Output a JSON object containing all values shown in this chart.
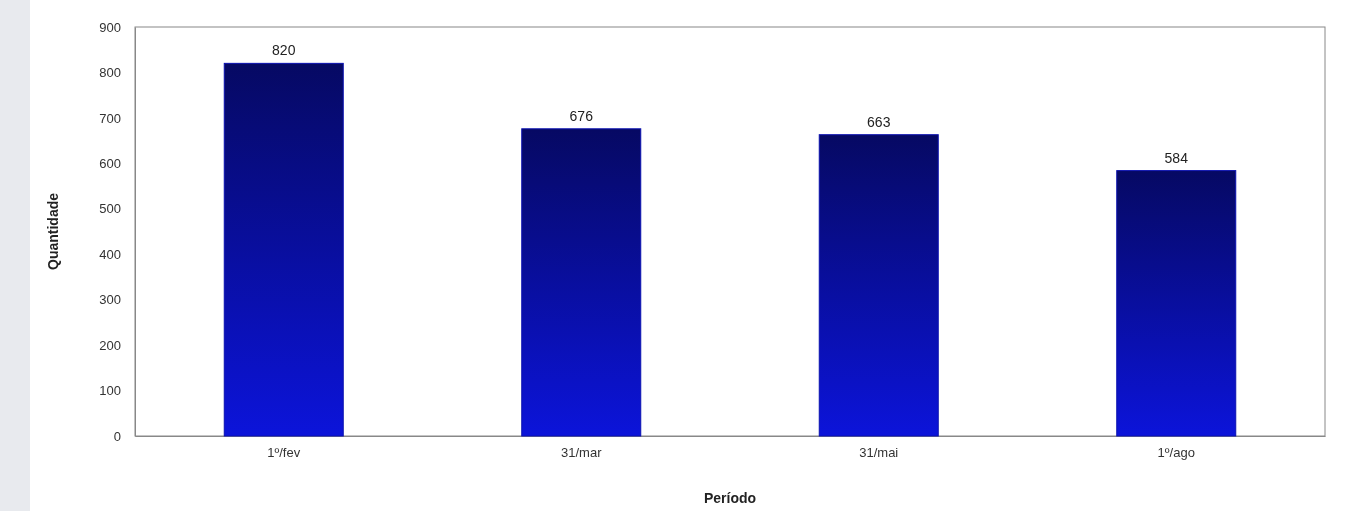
{
  "chart_data": {
    "type": "bar",
    "xlabel": "Período",
    "ylabel": "Quantidade",
    "categories": [
      "1º/fev",
      "31/mar",
      "31/mai",
      "1º/ago"
    ],
    "values": [
      820,
      676,
      663,
      584
    ],
    "color": "#0a10b0",
    "ylim": [
      0,
      900
    ],
    "yticks": [
      0,
      100,
      200,
      300,
      400,
      500,
      600,
      700,
      800,
      900
    ],
    "data_labels": true,
    "grid": false
  }
}
